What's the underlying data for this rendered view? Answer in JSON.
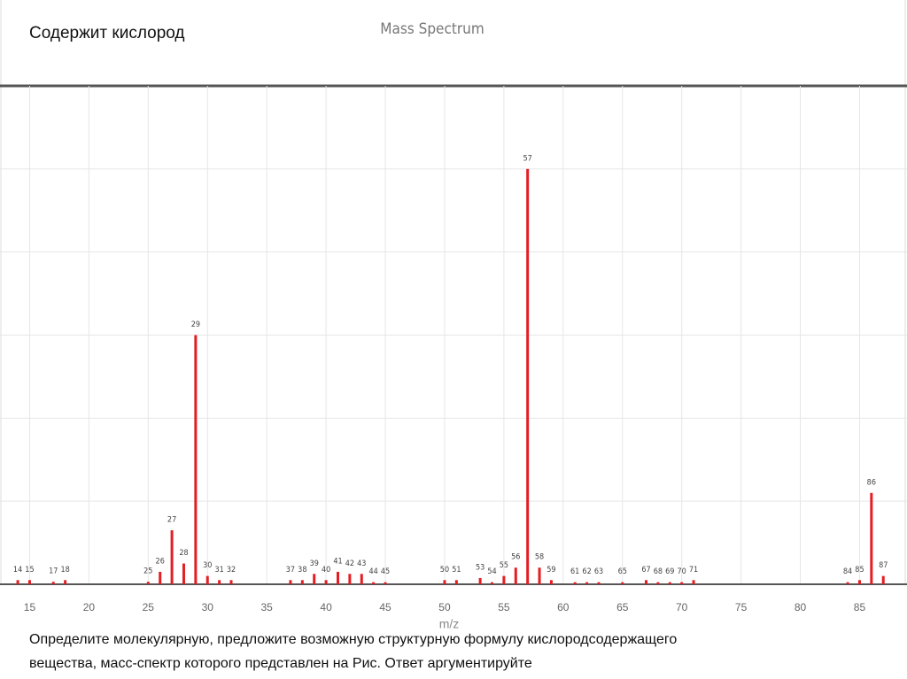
{
  "heading": "Содержит кислород",
  "caption": [
    "Определите молекулярную, предложите возможную структурную формулу кислородсодержащего",
    "вещества, масс-спектр которого представлен на Рис. Ответ аргументируйте"
  ],
  "chart_data": {
    "type": "bar",
    "title": "Mass Spectrum",
    "x_label": "m/z",
    "color": "#e31e24",
    "x": [
      14,
      15,
      17,
      18,
      25,
      26,
      27,
      28,
      29,
      30,
      31,
      32,
      37,
      38,
      39,
      40,
      41,
      42,
      43,
      44,
      45,
      50,
      51,
      53,
      54,
      55,
      56,
      57,
      58,
      59,
      61,
      62,
      63,
      65,
      67,
      68,
      69,
      70,
      71,
      84,
      85,
      86,
      87
    ],
    "values": [
      1,
      1,
      0.6,
      1,
      0.6,
      3,
      13,
      5,
      60,
      2,
      1,
      1,
      1,
      1,
      2.5,
      1,
      3,
      2.5,
      2.5,
      0.5,
      0.5,
      1,
      1,
      1.5,
      0.5,
      2,
      4,
      100,
      4,
      1,
      0.5,
      0.5,
      0.5,
      0.5,
      1,
      0.5,
      0.5,
      0.5,
      1,
      0.5,
      1,
      22,
      2
    ],
    "xlim": [
      12.5,
      89
    ],
    "xticks": [
      15,
      20,
      25,
      30,
      35,
      40,
      45,
      50,
      55,
      60,
      65,
      70,
      75,
      80,
      85
    ],
    "ylim": [
      0,
      120
    ],
    "ygrid": [
      20,
      40,
      60,
      80,
      100,
      120
    ],
    "grid": true
  }
}
